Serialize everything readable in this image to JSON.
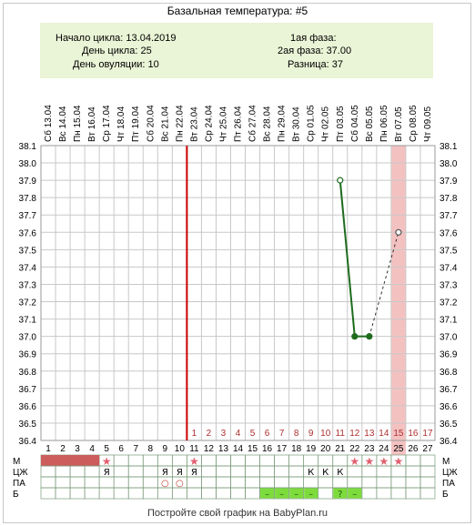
{
  "title": "Базальная температура: #5",
  "info": {
    "cycle_start": "Начало цикла: 13.04.2019",
    "cycle_day": "День цикла: 25",
    "ovulation_day": "День овуляции: 10",
    "phase1": "1ая фаза:",
    "phase2": "2ая фаза: 37.00",
    "difference": "Разница: 37"
  },
  "footer": "Постройте свой график на BabyPlan.ru",
  "colors": {
    "line": "#1e6b1e",
    "grid": "#c8c8c8",
    "ovulation_line": "#cc0000",
    "highlight": "#f4c1c1",
    "m_bar": "#cd5c5c",
    "star": "#e06070",
    "b_cell": "#7ddc3c",
    "second_phase_numbers": "#b03030"
  },
  "chart_data": {
    "type": "line",
    "dates": [
      "Сб 13.04",
      "Вс 14.04",
      "Пн 15.04",
      "Вт 16.04",
      "Ср 17.04",
      "Чт 18.04",
      "Пт 19.04",
      "Сб 20.04",
      "Вс 21.04",
      "Пн 22.04",
      "Вт 23.04",
      "Ср 24.04",
      "Чт 25.04",
      "Пт 26.04",
      "Сб 27.04",
      "Вс 28.04",
      "Пн 29.04",
      "Вт 30.04",
      "Ср 01.05",
      "Чт 02.05",
      "Пт 03.05",
      "Сб 04.05",
      "Вс 05.05",
      "Пн 06.05",
      "Вт 07.05",
      "Ср 08.05",
      "Чт 09.05"
    ],
    "days": [
      1,
      2,
      3,
      4,
      5,
      6,
      7,
      8,
      9,
      10,
      11,
      12,
      13,
      14,
      15,
      16,
      17,
      18,
      19,
      20,
      21,
      22,
      23,
      24,
      25,
      26,
      27
    ],
    "second_phase_labels": [
      {
        "day": 11,
        "label": "1"
      },
      {
        "day": 12,
        "label": "2"
      },
      {
        "day": 13,
        "label": "3"
      },
      {
        "day": 14,
        "label": "4"
      },
      {
        "day": 15,
        "label": "5"
      },
      {
        "day": 16,
        "label": "6"
      },
      {
        "day": 17,
        "label": "7"
      },
      {
        "day": 18,
        "label": "8"
      },
      {
        "day": 19,
        "label": "9"
      },
      {
        "day": 20,
        "label": "10"
      },
      {
        "day": 21,
        "label": "11"
      },
      {
        "day": 22,
        "label": "12"
      },
      {
        "day": 23,
        "label": "13"
      },
      {
        "day": 24,
        "label": "14"
      },
      {
        "day": 25,
        "label": "15"
      },
      {
        "day": 26,
        "label": "16"
      },
      {
        "day": 27,
        "label": "17"
      }
    ],
    "y_ticks": [
      "38.1",
      "38.0",
      "37.9",
      "37.8",
      "37.7",
      "37.6",
      "37.5",
      "37.4",
      "37.3",
      "37.2",
      "37.1",
      "37.0",
      "36.9",
      "36.8",
      "36.7",
      "36.6",
      "36.5",
      "36.4"
    ],
    "ylim": [
      36.4,
      38.1
    ],
    "series": [
      {
        "day": 21,
        "temp": 37.9,
        "marker": "open"
      },
      {
        "day": 22,
        "temp": 37.0,
        "marker": "filled"
      },
      {
        "day": 23,
        "temp": 37.0,
        "marker": "filled"
      },
      {
        "day": 25,
        "temp": 37.6,
        "marker": "open"
      }
    ],
    "dashed_segments": [
      [
        23,
        25
      ]
    ],
    "ovulation_day": 10,
    "highlight_day": 25,
    "rows": [
      {
        "label": "М",
        "bar_days": [
          1,
          2,
          3,
          4
        ],
        "star_days": [
          5,
          11,
          22,
          23,
          24,
          25
        ]
      },
      {
        "label": "ЦЖ",
        "marks": [
          {
            "day": 5,
            "text": "Я"
          },
          {
            "day": 9,
            "text": "Я"
          },
          {
            "day": 10,
            "text": "Я"
          },
          {
            "day": 11,
            "text": "Я"
          },
          {
            "day": 19,
            "text": "К"
          },
          {
            "day": 20,
            "text": "К"
          },
          {
            "day": 21,
            "text": "К"
          }
        ]
      },
      {
        "label": "ПА",
        "marks": [
          {
            "day": 9,
            "text": "○"
          },
          {
            "day": 10,
            "text": "○"
          }
        ]
      },
      {
        "label": "Б",
        "green_marks": [
          {
            "day": 16,
            "text": "–"
          },
          {
            "day": 17,
            "text": "–"
          },
          {
            "day": 18,
            "text": "–"
          },
          {
            "day": 19,
            "text": "–"
          },
          {
            "day": 21,
            "text": "?"
          },
          {
            "day": 22,
            "text": "–"
          }
        ]
      }
    ]
  }
}
